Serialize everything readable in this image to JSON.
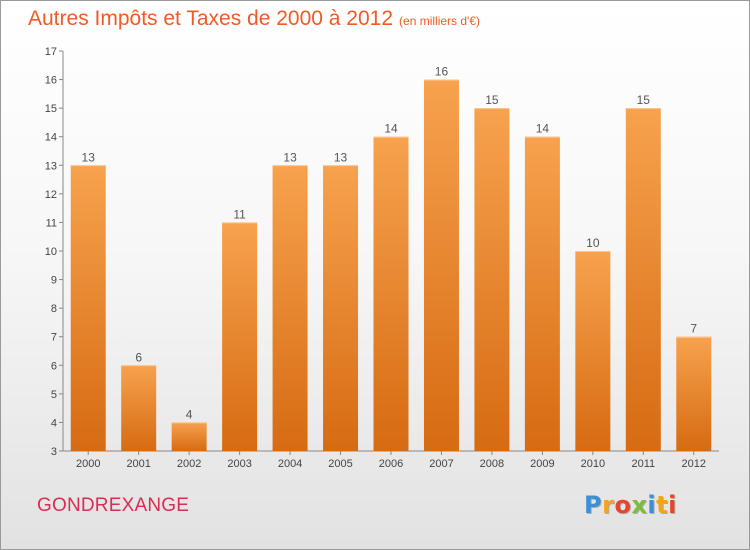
{
  "header": {
    "title": "Autres Impôts et Taxes de 2000 à 2012",
    "subtitle": "(en milliers d'€)"
  },
  "commune": "GONDREXANGE",
  "logo": {
    "text": "Proxiti",
    "colors": [
      "#3a8fd6",
      "#f5a31a",
      "#e8452c",
      "#7cbd3b"
    ]
  },
  "colors": {
    "bar_light": "#f7a24e",
    "bar_dark": "#d66b12",
    "title": "#f15a24",
    "commune": "#d92d55"
  },
  "chart_data": {
    "type": "bar",
    "title": "Autres Impôts et Taxes de 2000 à 2012",
    "subtitle": "(en milliers d'€)",
    "categories": [
      "2000",
      "2001",
      "2002",
      "2003",
      "2004",
      "2005",
      "2006",
      "2007",
      "2008",
      "2009",
      "2010",
      "2011",
      "2012"
    ],
    "values": [
      13,
      6,
      4,
      11,
      13,
      13,
      14,
      16,
      15,
      14,
      10,
      15,
      7
    ],
    "data_labels": [
      "13",
      "6",
      "4",
      "11",
      "13",
      "13",
      "14",
      "16",
      "15",
      "14",
      "10",
      "15",
      "7"
    ],
    "ylim": [
      3,
      17
    ],
    "yticks": [
      "3",
      "4",
      "5",
      "6",
      "7",
      "8",
      "9",
      "10",
      "11",
      "12",
      "13",
      "14",
      "15",
      "16",
      "17"
    ],
    "xlabel": "",
    "ylabel": "",
    "grid": false,
    "legend": "none"
  }
}
